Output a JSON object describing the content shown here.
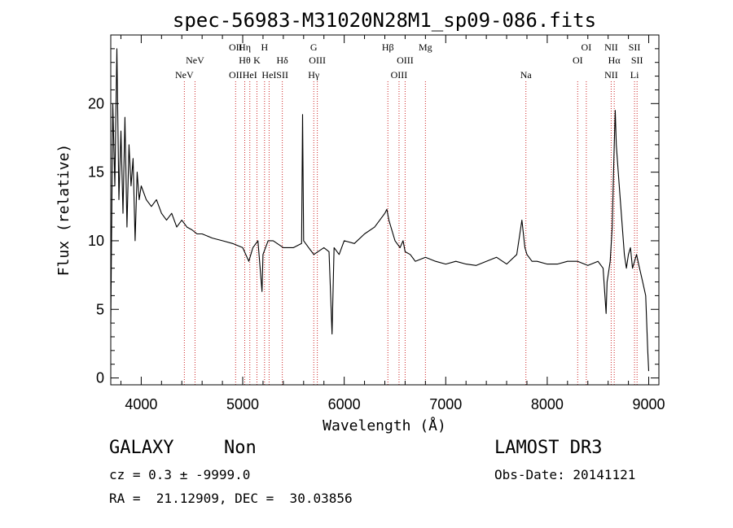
{
  "chart_data": {
    "type": "line",
    "title": "spec-56983-M31020N28M1_sp09-086.fits",
    "xlabel": "Wavelength (Å)",
    "ylabel": "Flux (relative)",
    "xlim": [
      3700,
      9100
    ],
    "ylim": [
      -0.5,
      25
    ],
    "xticks": [
      4000,
      5000,
      6000,
      7000,
      8000,
      9000
    ],
    "yticks": [
      0,
      5,
      10,
      15,
      20
    ],
    "series": [
      {
        "x": [
          3700,
          3720,
          3740,
          3760,
          3780,
          3800,
          3820,
          3840,
          3860,
          3880,
          3900,
          3920,
          3940,
          3960,
          3980,
          4000,
          4050,
          4100,
          4150,
          4200,
          4250,
          4300,
          4350,
          4400,
          4450,
          4500,
          4550,
          4600,
          4700,
          4800,
          4900,
          5000,
          5060,
          5100,
          5150,
          5190,
          5200,
          5250,
          5300,
          5400,
          5500,
          5580,
          5590,
          5600,
          5650,
          5700,
          5800,
          5850,
          5880,
          5900,
          5950,
          6000,
          6100,
          6200,
          6300,
          6350,
          6400,
          6420,
          6440,
          6480,
          6500,
          6550,
          6580,
          6600,
          6650,
          6700,
          6800,
          6900,
          7000,
          7100,
          7200,
          7300,
          7400,
          7500,
          7600,
          7700,
          7750,
          7780,
          7800,
          7850,
          7900,
          8000,
          8100,
          8200,
          8300,
          8400,
          8500,
          8550,
          8580,
          8590,
          8600,
          8620,
          8640,
          8650,
          8660,
          8670,
          8680,
          8700,
          8720,
          8740,
          8760,
          8780,
          8800,
          8820,
          8840,
          8860,
          8880,
          8900,
          8940,
          8970,
          8990,
          9000
        ],
        "y": [
          4,
          20,
          14,
          24,
          13,
          18,
          12,
          19,
          11,
          17,
          14,
          16,
          10,
          15,
          13,
          14,
          13,
          12.5,
          13,
          12,
          11.5,
          12,
          11,
          11.5,
          11,
          10.8,
          10.5,
          10.5,
          10.2,
          10,
          9.8,
          9.5,
          8.5,
          9.5,
          10,
          6.3,
          9,
          10,
          10,
          9.5,
          9.5,
          9.8,
          19.2,
          10,
          9.5,
          9,
          9.5,
          9.2,
          3.2,
          9.5,
          9,
          10,
          9.8,
          10.5,
          11,
          11.5,
          12,
          12.3,
          11.5,
          10.5,
          10,
          9.5,
          10,
          9.2,
          9,
          8.5,
          8.8,
          8.5,
          8.3,
          8.5,
          8.3,
          8.2,
          8.5,
          8.8,
          8.3,
          9,
          11.5,
          9.5,
          9,
          8.5,
          8.5,
          8.3,
          8.3,
          8.5,
          8.5,
          8.2,
          8.5,
          8,
          4.7,
          7,
          7.5,
          8.5,
          11,
          14,
          17,
          19.5,
          17,
          15,
          13,
          11,
          9,
          8,
          9,
          9.5,
          8,
          8.5,
          9,
          8.3,
          7,
          6,
          2,
          0.5
        ]
      }
    ]
  },
  "spectral_lines": [
    {
      "wavelength": 4425,
      "row": 3,
      "label": "NeV"
    },
    {
      "wavelength": 4530,
      "row": 2,
      "label": "NeV"
    },
    {
      "wavelength": 4930,
      "row": 1,
      "label": "OII"
    },
    {
      "wavelength": 4930,
      "row": 3,
      "label": "OII"
    },
    {
      "wavelength": 5020,
      "row": 1,
      "label": "Hη"
    },
    {
      "wavelength": 5020,
      "row": 2,
      "label": "Hθ"
    },
    {
      "wavelength": 5070,
      "row": 3,
      "label": "HeI"
    },
    {
      "wavelength": 5140,
      "row": 2,
      "label": "K"
    },
    {
      "wavelength": 5215,
      "row": 1,
      "label": "H"
    },
    {
      "wavelength": 5260,
      "row": 3,
      "label": "HeI"
    },
    {
      "wavelength": 5390,
      "row": 2,
      "label": "Hδ"
    },
    {
      "wavelength": 5390,
      "row": 3,
      "label": "SII"
    },
    {
      "wavelength": 5700,
      "row": 1,
      "label": "G"
    },
    {
      "wavelength": 5735,
      "row": 2,
      "label": "OIII"
    },
    {
      "wavelength": 5700,
      "row": 3,
      "label": "Hγ"
    },
    {
      "wavelength": 6430,
      "row": 1,
      "label": "Hβ"
    },
    {
      "wavelength": 6600,
      "row": 2,
      "label": "OIII"
    },
    {
      "wavelength": 6540,
      "row": 3,
      "label": "OIII"
    },
    {
      "wavelength": 6800,
      "row": 1,
      "label": "Mg"
    },
    {
      "wavelength": 7790,
      "row": 3,
      "label": "Na"
    },
    {
      "wavelength": 8385,
      "row": 1,
      "label": "OI"
    },
    {
      "wavelength": 8300,
      "row": 2,
      "label": "OI"
    },
    {
      "wavelength": 8630,
      "row": 1,
      "label": "NII"
    },
    {
      "wavelength": 8660,
      "row": 2,
      "label": "Hα"
    },
    {
      "wavelength": 8630,
      "row": 3,
      "label": "NII"
    },
    {
      "wavelength": 8860,
      "row": 1,
      "label": "SII"
    },
    {
      "wavelength": 8885,
      "row": 2,
      "label": "SII"
    },
    {
      "wavelength": 8860,
      "row": 3,
      "label": "Li"
    }
  ],
  "info": {
    "object_class": "GALAXY",
    "subclass": "Non",
    "survey": "LAMOST DR3",
    "cz": "cz = 0.3 ± -9999.0",
    "obs_date": "Obs-Date: 20141121",
    "coords": "RA =  21.12909, DEC =  30.03856"
  },
  "colors": {
    "line_marker": "#cc2222",
    "spectrum": "#000000",
    "axis": "#000000"
  }
}
